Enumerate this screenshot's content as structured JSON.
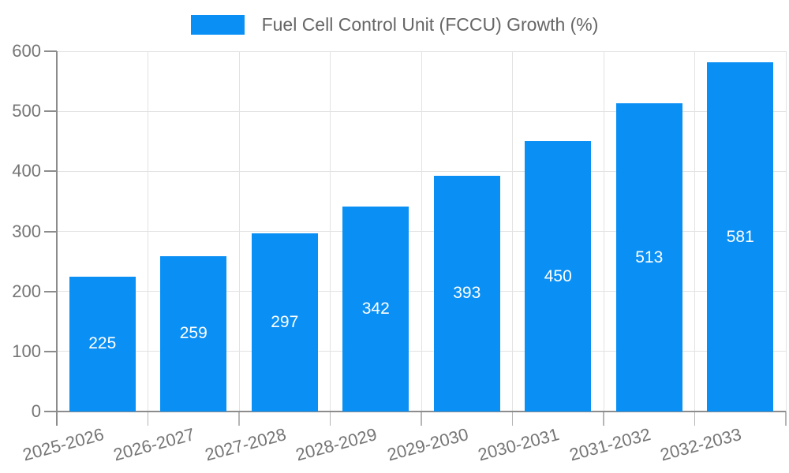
{
  "chart_data": {
    "type": "bar",
    "title": "",
    "legend_label": "Fuel Cell Control Unit (FCCU) Growth (%)",
    "categories": [
      "2025-2026",
      "2026-2027",
      "2027-2028",
      "2028-2029",
      "2029-2030",
      "2030-2031",
      "2031-2032",
      "2032-2033"
    ],
    "series": [
      {
        "name": "Fuel Cell Control Unit (FCCU) Growth (%)",
        "values": [
          225,
          259,
          297,
          342,
          393,
          450,
          513,
          581
        ]
      }
    ],
    "value_labels_shown": true,
    "xlabel": "",
    "ylabel": "",
    "ylim": [
      0,
      600
    ],
    "yticks": [
      0,
      100,
      200,
      300,
      400,
      500,
      600
    ],
    "grid": "horizontal and vertical gridlines on",
    "legend_position": "top-center",
    "x_label_rotation_deg": -15,
    "colors": {
      "bar": "#0a90f5",
      "value_label": "#ffffff",
      "axis_label": "#757575",
      "legend_text": "#666666",
      "gridline": "#e2e2e2",
      "axis_line": "#8c8c8c",
      "tick_mark": "#b5b5b5",
      "background": "#ffffff"
    }
  }
}
